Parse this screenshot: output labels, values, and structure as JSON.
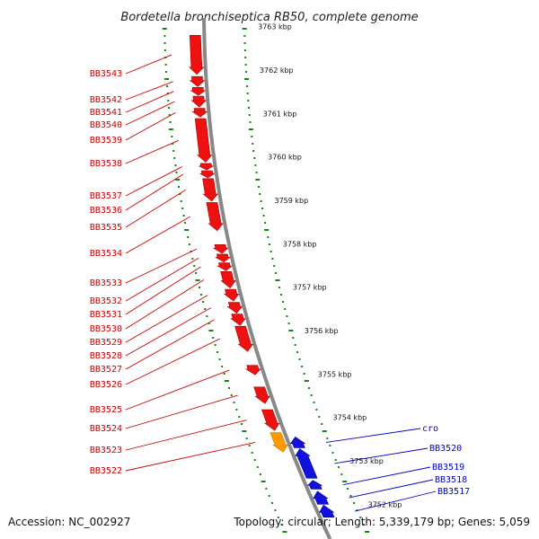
{
  "title": "Bordetella bronchiseptica RB50, complete genome",
  "footer": {
    "accession": "Accession: NC_002927",
    "topology": "Topology: circular; Length: 5,339,179 bp; Genes: 5,059"
  },
  "colors": {
    "forward_gene": "#ee1111",
    "reverse_gene": "#1111dd",
    "highlight_gene": "#ff9900",
    "backbone": "#888888",
    "tick": "#118811",
    "forward_label": "#cc0000",
    "reverse_label": "#0000cc"
  },
  "ruler": [
    {
      "label": "3763 kbp",
      "pos": 3763
    },
    {
      "label": "3762 kbp",
      "pos": 3762
    },
    {
      "label": "3761 kbp",
      "pos": 3761
    },
    {
      "label": "3760 kbp",
      "pos": 3760
    },
    {
      "label": "3759 kbp",
      "pos": 3759
    },
    {
      "label": "3758 kbp",
      "pos": 3758
    },
    {
      "label": "3757 kbp",
      "pos": 3757
    },
    {
      "label": "3756 kbp",
      "pos": 3756
    },
    {
      "label": "3755 kbp",
      "pos": 3755
    },
    {
      "label": "3754 kbp",
      "pos": 3754
    },
    {
      "label": "3753 kbp",
      "pos": 3753
    },
    {
      "label": "3752 kbp",
      "pos": 3752
    }
  ],
  "forward_genes": [
    {
      "label": "BB3543",
      "start": 3762.8,
      "end": 3761.9
    },
    {
      "label": "BB3542",
      "start": 3761.85,
      "end": 3761.62
    },
    {
      "label": "BB3541",
      "start": 3761.6,
      "end": 3761.42
    },
    {
      "label": "BB3540",
      "start": 3761.4,
      "end": 3761.15
    },
    {
      "label": "BB3539",
      "start": 3761.12,
      "end": 3760.92
    },
    {
      "label": "BB3538",
      "start": 3760.88,
      "end": 3759.88
    },
    {
      "label": "BB3537",
      "start": 3759.85,
      "end": 3759.7
    },
    {
      "label": "BB3536",
      "start": 3759.68,
      "end": 3759.52
    },
    {
      "label": "BB3535",
      "start": 3759.5,
      "end": 3758.98
    },
    {
      "label": "BB3534",
      "start": 3758.95,
      "end": 3758.3
    },
    {
      "label": "BB3533",
      "start": 3757.98,
      "end": 3757.78
    },
    {
      "label": "BB3532",
      "start": 3757.76,
      "end": 3757.58
    },
    {
      "label": "BB3531",
      "start": 3757.56,
      "end": 3757.38
    },
    {
      "label": "BB3530",
      "start": 3757.36,
      "end": 3756.98
    },
    {
      "label": "BB3529",
      "start": 3756.95,
      "end": 3756.68
    },
    {
      "label": "BB3528",
      "start": 3756.65,
      "end": 3756.4
    },
    {
      "label": "BB3527",
      "start": 3756.38,
      "end": 3756.12
    },
    {
      "label": "BB3526",
      "start": 3756.1,
      "end": 3755.52
    },
    {
      "label": "BB3525",
      "start": 3755.2,
      "end": 3754.98
    },
    {
      "label": "BB3524",
      "start": 3754.7,
      "end": 3754.32
    },
    {
      "label": "BB3523",
      "start": 3754.18,
      "end": 3753.7
    },
    {
      "label": "BB3522",
      "start": 3753.65,
      "end": 3753.2,
      "highlight": true
    }
  ],
  "reverse_genes": [
    {
      "label": "cro",
      "start": 3753.55,
      "end": 3753.3
    },
    {
      "label": "BB3520",
      "start": 3753.28,
      "end": 3752.6
    },
    {
      "label": "BB3519",
      "start": 3752.55,
      "end": 3752.35
    },
    {
      "label": "BB3518",
      "start": 3752.3,
      "end": 3752.0
    },
    {
      "label": "BB3517",
      "start": 3751.98,
      "end": 3751.7
    }
  ]
}
